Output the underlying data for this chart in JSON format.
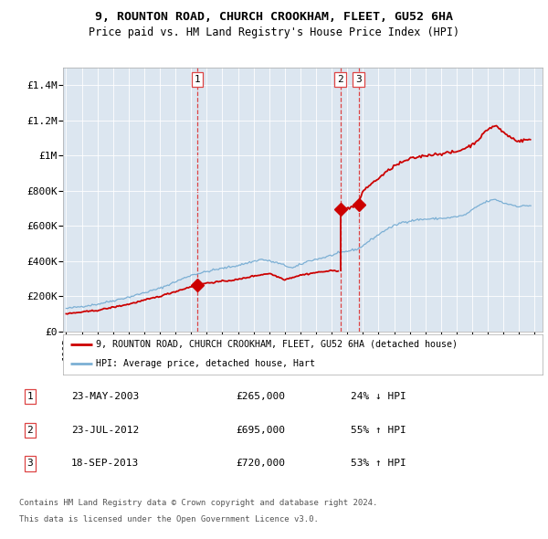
{
  "title": "9, ROUNTON ROAD, CHURCH CROOKHAM, FLEET, GU52 6HA",
  "subtitle": "Price paid vs. HM Land Registry's House Price Index (HPI)",
  "background_color": "#dce6f0",
  "plot_bg_color": "#dce6f0",
  "red_line_label": "9, ROUNTON ROAD, CHURCH CROOKHAM, FLEET, GU52 6HA (detached house)",
  "blue_line_label": "HPI: Average price, detached house, Hart",
  "sales": [
    {
      "num": 1,
      "date_label": "23-MAY-2003",
      "date_year": 2003.39,
      "price": 265000,
      "note": "24% ↓ HPI"
    },
    {
      "num": 2,
      "date_label": "23-JUL-2012",
      "date_year": 2012.55,
      "price": 695000,
      "note": "55% ↑ HPI"
    },
    {
      "num": 3,
      "date_label": "18-SEP-2013",
      "date_year": 2013.72,
      "price": 720000,
      "note": "53% ↑ HPI"
    }
  ],
  "footer_line1": "Contains HM Land Registry data © Crown copyright and database right 2024.",
  "footer_line2": "This data is licensed under the Open Government Licence v3.0.",
  "ylim": [
    0,
    1500000
  ],
  "yticks": [
    0,
    200000,
    400000,
    600000,
    800000,
    1000000,
    1200000,
    1400000
  ],
  "ytick_labels": [
    "£0",
    "£200K",
    "£400K",
    "£600K",
    "£800K",
    "£1M",
    "£1.2M",
    "£1.4M"
  ],
  "xlim_start": 1994.8,
  "xlim_end": 2025.5,
  "red_color": "#cc0000",
  "blue_color": "#7bafd4",
  "dashed_color": "#dd4444",
  "hpi_anchors_t": [
    1995.0,
    1997.0,
    1999.0,
    2001.0,
    2003.0,
    2004.5,
    2006.0,
    2007.5,
    2008.5,
    2009.5,
    2010.5,
    2011.5,
    2012.55,
    2013.72,
    2014.5,
    2015.5,
    2016.5,
    2017.5,
    2018.5,
    2019.5,
    2020.5,
    2021.0,
    2021.5,
    2022.0,
    2022.5,
    2023.0,
    2023.5,
    2024.0,
    2024.5
  ],
  "hpi_anchors_v": [
    130000,
    155000,
    195000,
    245000,
    320000,
    350000,
    375000,
    410000,
    390000,
    360000,
    400000,
    420000,
    447000,
    470000,
    520000,
    580000,
    620000,
    635000,
    640000,
    645000,
    660000,
    690000,
    720000,
    740000,
    750000,
    730000,
    720000,
    710000,
    715000
  ],
  "red_anchors_before_t": [
    1995.0,
    1997.0,
    1999.0,
    2001.0,
    2003.39
  ],
  "red_anchors_before_v": [
    100000,
    120000,
    155000,
    200000,
    265000
  ],
  "red_anchors_mid_t": [
    2003.39,
    2004.0,
    2005.0,
    2006.0,
    2007.0,
    2008.0,
    2009.0,
    2010.0,
    2011.0,
    2012.0,
    2012.55
  ],
  "red_anchors_mid_v": [
    265000,
    275000,
    285000,
    295000,
    315000,
    330000,
    295000,
    320000,
    335000,
    345000,
    695000
  ],
  "red_anchors_after_t": [
    2012.55,
    2013.0,
    2013.72,
    2014.0,
    2015.0,
    2016.0,
    2017.0,
    2018.0,
    2019.0,
    2020.0,
    2021.0,
    2021.5,
    2022.0,
    2022.5,
    2023.0,
    2023.5,
    2024.0,
    2024.5
  ],
  "red_anchors_after_v": [
    695000,
    700000,
    720000,
    800000,
    870000,
    940000,
    980000,
    1000000,
    1010000,
    1020000,
    1060000,
    1100000,
    1150000,
    1170000,
    1130000,
    1100000,
    1080000,
    1090000
  ]
}
